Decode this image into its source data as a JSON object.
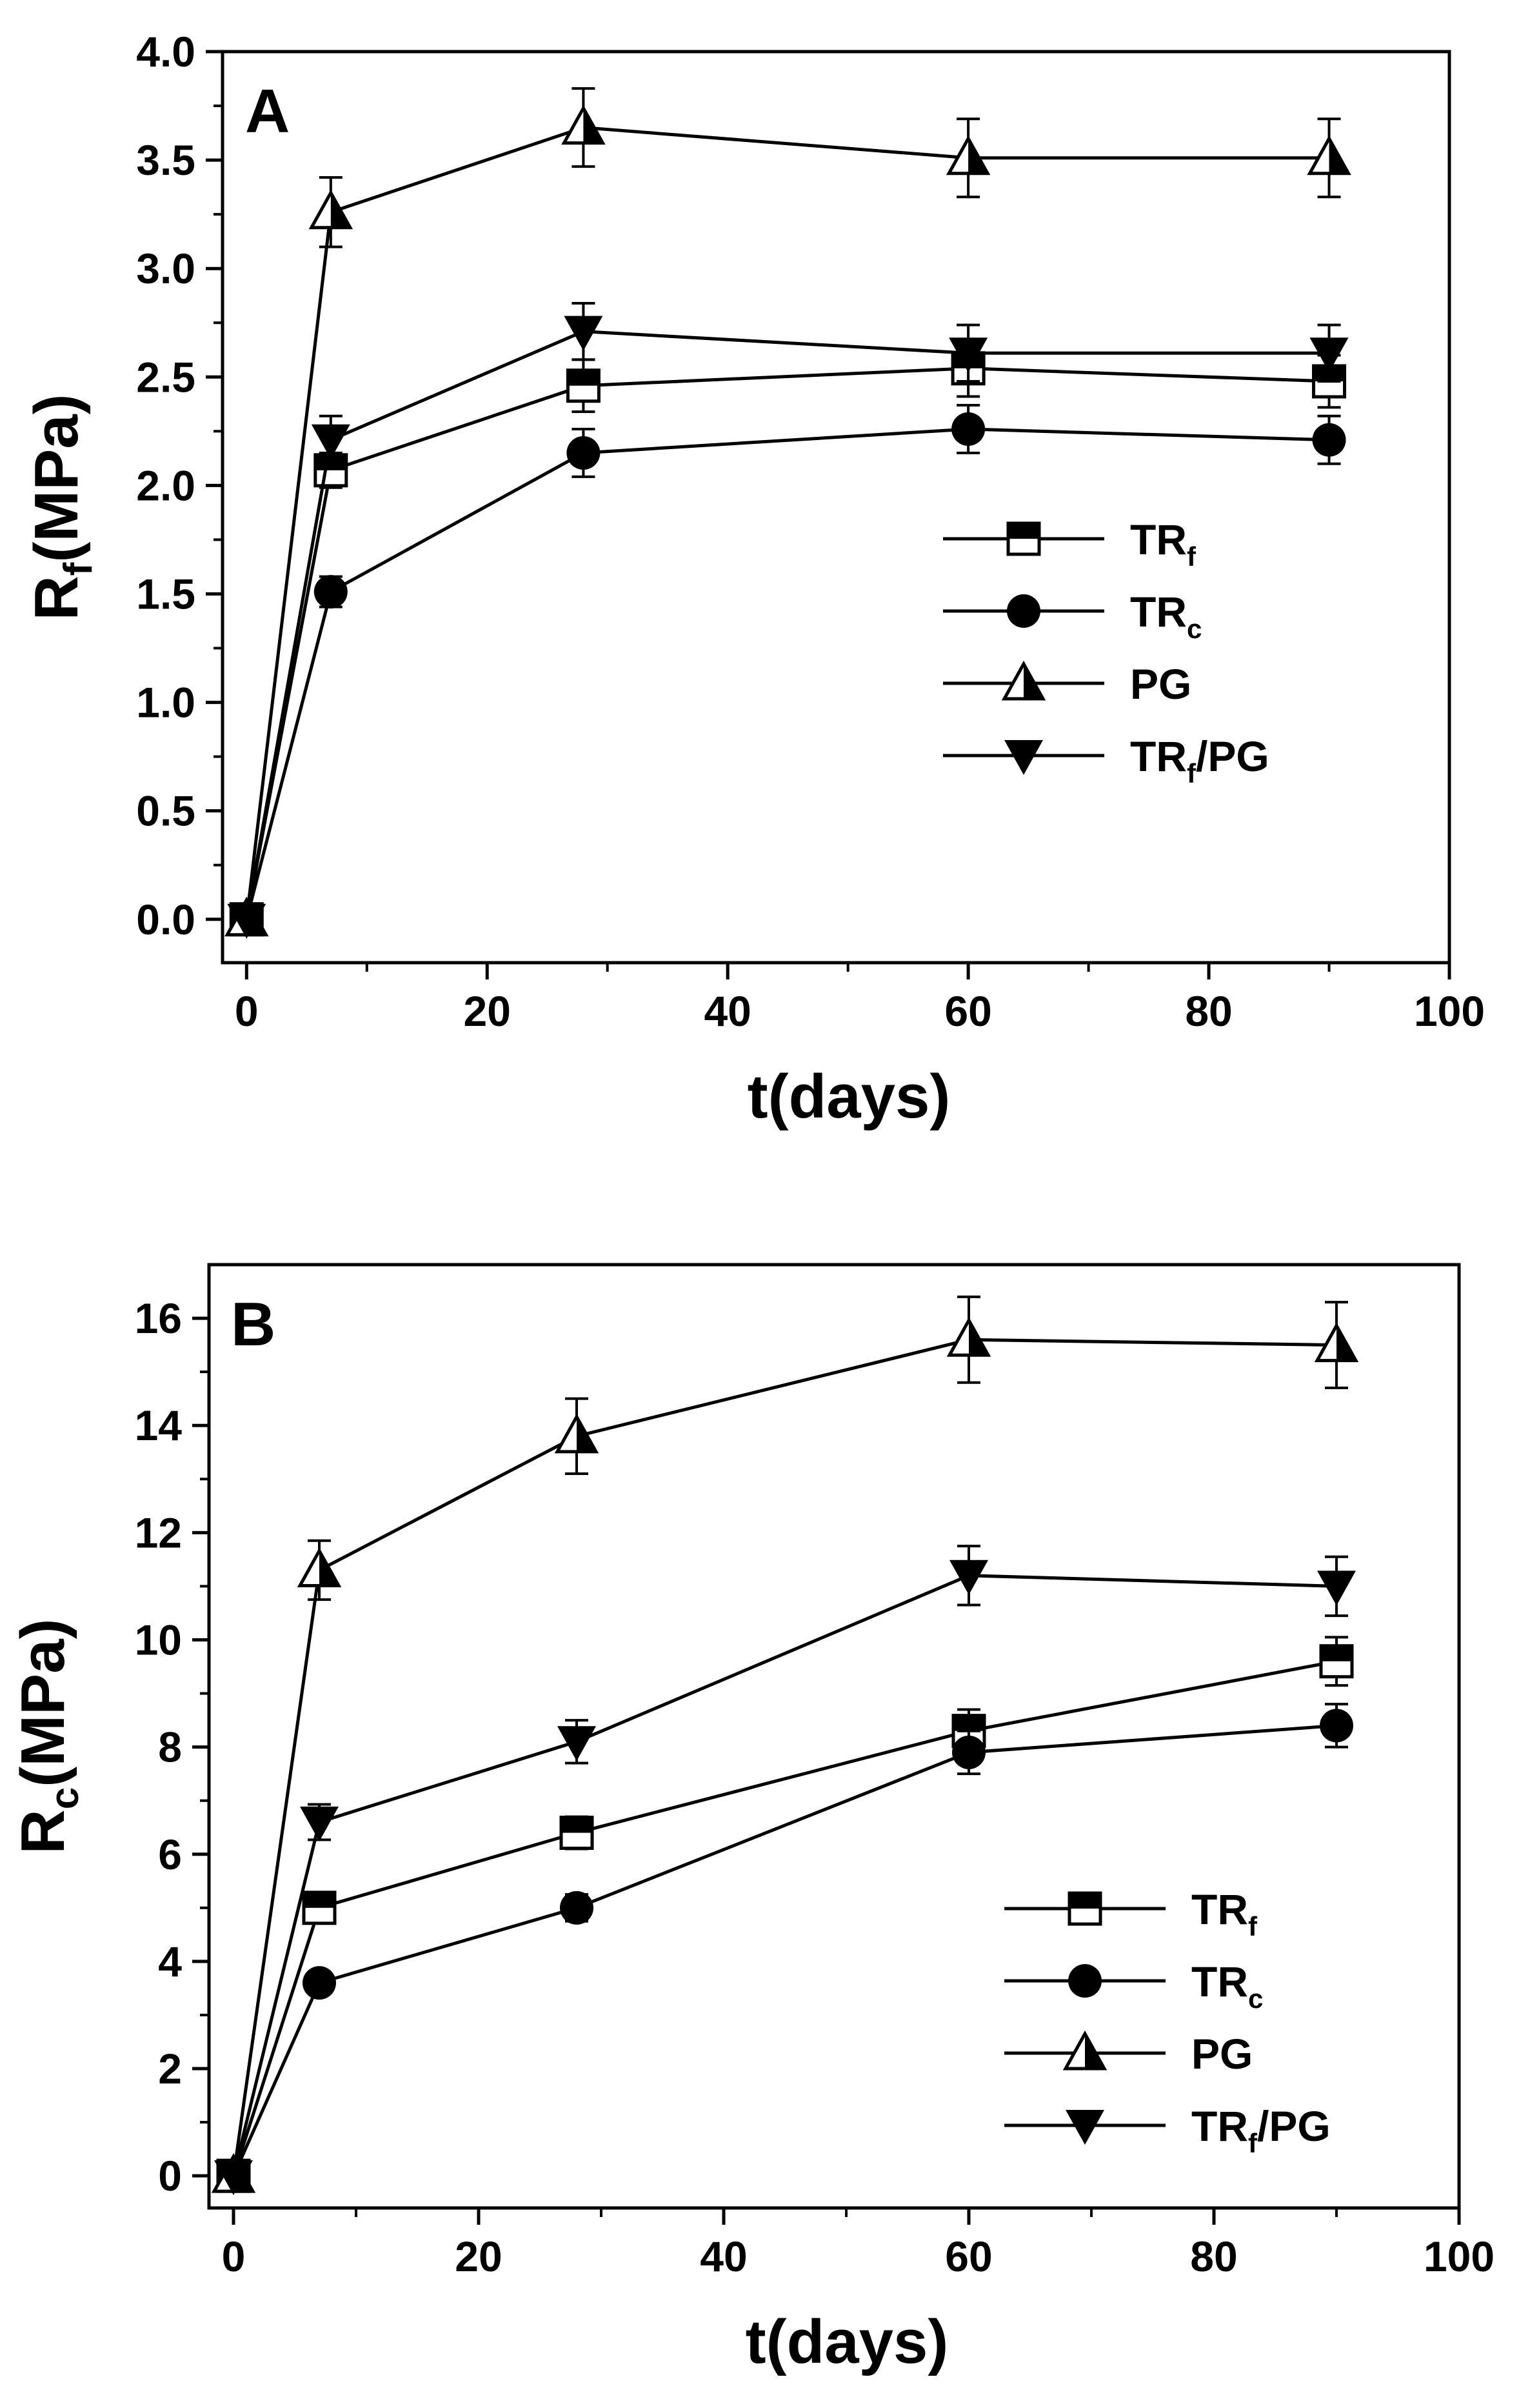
{
  "chart_data": [
    {
      "type": "line",
      "panel_label": "A",
      "xlabel": "t(days)",
      "ylabel": {
        "base": "R",
        "sub": "f",
        "rest": "(MPa)"
      },
      "xlim": [
        -2,
        100
      ],
      "ylim": [
        -0.2,
        4.0
      ],
      "xticks": [
        0,
        20,
        40,
        60,
        80,
        100
      ],
      "yticks": [
        0.0,
        0.5,
        1.0,
        1.5,
        2.0,
        2.5,
        3.0,
        3.5,
        4.0
      ],
      "yticks_text": [
        "0.0",
        "0.5",
        "1.0",
        "1.5",
        "2.0",
        "2.5",
        "3.0",
        "3.5",
        "4.0"
      ],
      "x": [
        0,
        7,
        28,
        60,
        90
      ],
      "legend_position": "center-right",
      "series": [
        {
          "name": "TRf",
          "label_base": "TR",
          "label_sub": "f",
          "label_rest": "",
          "marker": "square-half",
          "values": [
            0.0,
            2.07,
            2.46,
            2.54,
            2.48
          ],
          "errors": [
            0,
            0.08,
            0.12,
            0.13,
            0.12
          ]
        },
        {
          "name": "TRc",
          "label_base": "TR",
          "label_sub": "c",
          "label_rest": "",
          "marker": "circle",
          "values": [
            0.0,
            1.51,
            2.15,
            2.26,
            2.21
          ],
          "errors": [
            0,
            0.07,
            0.11,
            0.11,
            0.11
          ]
        },
        {
          "name": "PG",
          "label_base": "PG",
          "label_sub": "",
          "label_rest": "",
          "marker": "triangle-up-half",
          "values": [
            0.0,
            3.26,
            3.65,
            3.51,
            3.51
          ],
          "errors": [
            0,
            0.16,
            0.18,
            0.18,
            0.18
          ]
        },
        {
          "name": "TRf/PG",
          "label_base": "TR",
          "label_sub": "f",
          "label_rest": "/PG",
          "marker": "triangle-down",
          "values": [
            0.0,
            2.21,
            2.71,
            2.61,
            2.61
          ],
          "errors": [
            0,
            0.11,
            0.13,
            0.13,
            0.13
          ]
        }
      ]
    },
    {
      "type": "line",
      "panel_label": "B",
      "xlabel": "t(days)",
      "ylabel": {
        "base": "R",
        "sub": "c",
        "rest": "(MPa)"
      },
      "xlim": [
        -2,
        100
      ],
      "ylim": [
        -0.6,
        17
      ],
      "xticks": [
        0,
        20,
        40,
        60,
        80,
        100
      ],
      "yticks": [
        0,
        2,
        4,
        6,
        8,
        10,
        12,
        14,
        16
      ],
      "yticks_text": [
        "0",
        "2",
        "4",
        "6",
        "8",
        "10",
        "12",
        "14",
        "16"
      ],
      "x": [
        0,
        7,
        28,
        60,
        90
      ],
      "legend_position": "lower-right",
      "series": [
        {
          "name": "TRf",
          "label_base": "TR",
          "label_sub": "f",
          "label_rest": "",
          "marker": "square-half",
          "values": [
            0.0,
            5.0,
            6.4,
            8.3,
            9.6
          ],
          "errors": [
            0,
            0.25,
            0.3,
            0.4,
            0.45
          ]
        },
        {
          "name": "TRc",
          "label_base": "TR",
          "label_sub": "c",
          "label_rest": "",
          "marker": "circle",
          "values": [
            0.0,
            3.6,
            5.0,
            7.9,
            8.4
          ],
          "errors": [
            0,
            0.2,
            0.25,
            0.4,
            0.4
          ]
        },
        {
          "name": "PG",
          "label_base": "PG",
          "label_sub": "",
          "label_rest": "",
          "marker": "triangle-up-half",
          "values": [
            0.0,
            11.3,
            13.8,
            15.6,
            15.5
          ],
          "errors": [
            0,
            0.55,
            0.7,
            0.8,
            0.8
          ]
        },
        {
          "name": "TRf/PG",
          "label_base": "TR",
          "label_sub": "f",
          "label_rest": "/PG",
          "marker": "triangle-down",
          "values": [
            0.0,
            6.6,
            8.1,
            11.2,
            11.0
          ],
          "errors": [
            0,
            0.33,
            0.4,
            0.55,
            0.55
          ]
        }
      ]
    }
  ]
}
